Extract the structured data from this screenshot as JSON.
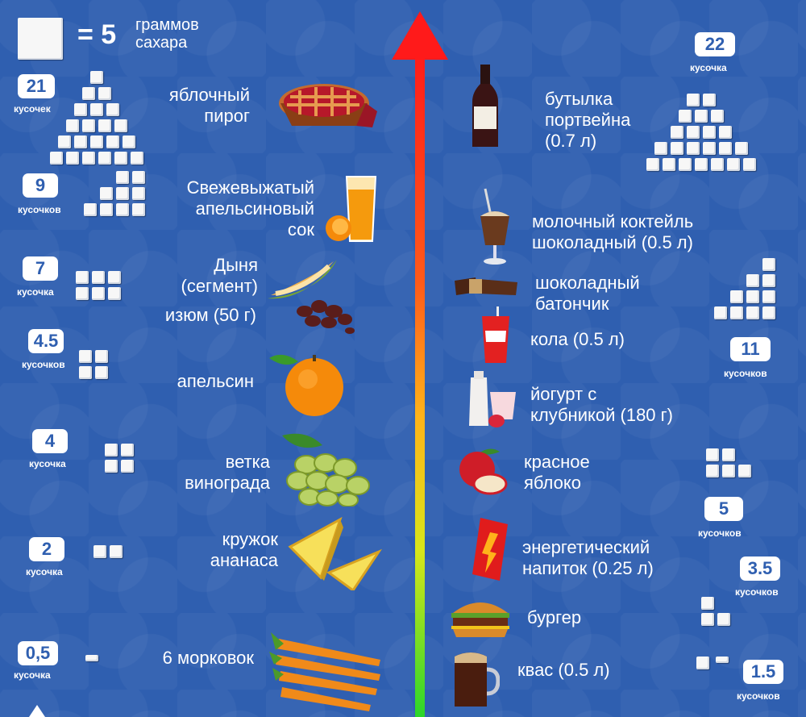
{
  "legend": {
    "value": "= 5",
    "unit_text": "граммов\nсахара"
  },
  "left": [
    {
      "count": "21",
      "unit": "кусочек",
      "label": "яблочный\nпирог",
      "icon": "apple-pie"
    },
    {
      "count": "9",
      "unit": "кусочков",
      "label": "Свежевыжатый\nапельсиновый\nсок",
      "icon": "orange-juice"
    },
    {
      "count": "7",
      "unit": "кусочка",
      "label": "Дыня\n(сегмент)",
      "icon": "melon"
    },
    {
      "extra_label": "изюм (50 г)",
      "icon": "raisins"
    },
    {
      "count": "4.5",
      "unit": "кусочков",
      "label": "апельсин",
      "icon": "orange"
    },
    {
      "count": "4",
      "unit": "кусочка",
      "label": "ветка\nвинограда",
      "icon": "grapes"
    },
    {
      "count": "2",
      "unit": "кусочка",
      "label": "кружок\nананаса",
      "icon": "pineapple"
    },
    {
      "count": "0,5",
      "unit": "кусочка",
      "label": "6 морковок",
      "icon": "carrots"
    }
  ],
  "right": [
    {
      "count": "22",
      "unit": "кусочка",
      "label": "бутылка\nпортвейна\n(0.7 л)",
      "icon": "port-wine-bottle"
    },
    {
      "label": "молочный коктейль\nшоколадный (0.5 л)",
      "icon": "chocolate-milkshake"
    },
    {
      "label": "шоколадный\nбатончик",
      "icon": "chocolate-bar"
    },
    {
      "count": "11",
      "unit": "кусочков",
      "label": "кола (0.5 л)",
      "icon": "cola-cup"
    },
    {
      "label": "йогурт с\nклубникой (180 г)",
      "icon": "strawberry-yogurt"
    },
    {
      "count": "5",
      "unit": "кусочков",
      "label": "красное\nяблоко",
      "icon": "red-apple"
    },
    {
      "count": "3.5",
      "unit": "кусочков",
      "label": "энергетический\nнапиток (0.25 л)",
      "icon": "energy-drink"
    },
    {
      "label": "бургер",
      "icon": "burger"
    },
    {
      "count": "1.5",
      "unit": "кусочков",
      "label": "квас (0.5 л)",
      "icon": "kvass-mug"
    }
  ],
  "colors": {
    "background": "#2f5fb0",
    "axis_top": "#ff1a1a",
    "axis_bottom": "#2bd62b"
  }
}
